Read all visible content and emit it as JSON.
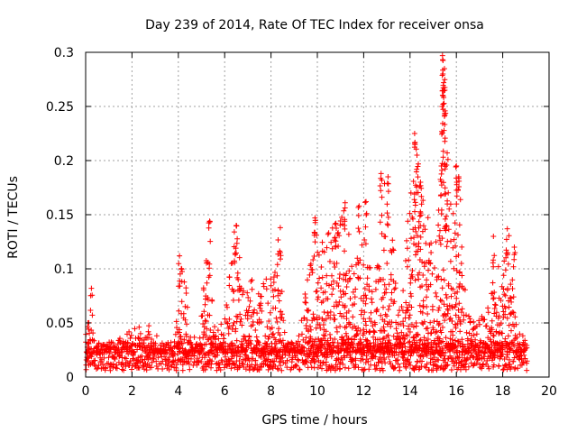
{
  "chart_data": {
    "type": "scatter",
    "title": "Day 239 of 2014, Rate Of TEC Index for receiver onsa",
    "xlabel": "GPS time / hours",
    "ylabel": "ROTI / TECUs",
    "xlim": [
      0,
      20
    ],
    "ylim": [
      0,
      0.3
    ],
    "xticks": [
      0,
      2,
      4,
      6,
      8,
      10,
      12,
      14,
      16,
      18,
      20
    ],
    "yticks": [
      0,
      0.05,
      0.1,
      0.15,
      0.2,
      0.25,
      0.3
    ],
    "ytick_labels": [
      "0",
      "0.05",
      "0.1",
      "0.15",
      "0.2",
      "0.25",
      "0.3"
    ],
    "grid": true,
    "marker": "+",
    "color": "#ff0000",
    "series": [
      {
        "name": "ROTI",
        "baseline": {
          "x_start": 0.0,
          "x_end": 19.0,
          "step": 0.05,
          "y_min": 0.006,
          "y_max": 0.032
        },
        "envelope": [
          [
            0.0,
            0.05
          ],
          [
            0.2,
            0.052
          ],
          [
            0.5,
            0.03
          ],
          [
            1.0,
            0.035
          ],
          [
            1.5,
            0.04
          ],
          [
            2.0,
            0.045
          ],
          [
            2.5,
            0.048
          ],
          [
            2.8,
            0.055
          ],
          [
            3.2,
            0.03
          ],
          [
            3.8,
            0.035
          ],
          [
            4.1,
            0.11
          ],
          [
            4.4,
            0.07
          ],
          [
            4.8,
            0.04
          ],
          [
            5.3,
            0.14
          ],
          [
            5.6,
            0.04
          ],
          [
            6.0,
            0.06
          ],
          [
            6.4,
            0.14
          ],
          [
            6.8,
            0.09
          ],
          [
            7.2,
            0.1
          ],
          [
            7.6,
            0.09
          ],
          [
            8.0,
            0.1
          ],
          [
            8.3,
            0.135
          ],
          [
            8.6,
            0.03
          ],
          [
            9.2,
            0.04
          ],
          [
            9.6,
            0.1
          ],
          [
            9.9,
            0.145
          ],
          [
            10.3,
            0.13
          ],
          [
            10.6,
            0.14
          ],
          [
            11.0,
            0.15
          ],
          [
            11.2,
            0.16
          ],
          [
            11.6,
            0.1
          ],
          [
            12.0,
            0.15
          ],
          [
            12.4,
            0.08
          ],
          [
            12.8,
            0.185
          ],
          [
            13.1,
            0.16
          ],
          [
            13.4,
            0.08
          ],
          [
            13.8,
            0.12
          ],
          [
            14.2,
            0.225
          ],
          [
            14.5,
            0.17
          ],
          [
            14.8,
            0.15
          ],
          [
            15.0,
            0.1
          ],
          [
            15.3,
            0.2
          ],
          [
            15.45,
            0.295
          ],
          [
            15.7,
            0.16
          ],
          [
            16.1,
            0.19
          ],
          [
            16.4,
            0.06
          ],
          [
            16.8,
            0.05
          ],
          [
            17.3,
            0.07
          ],
          [
            17.6,
            0.13
          ],
          [
            17.9,
            0.1
          ],
          [
            18.3,
            0.135
          ],
          [
            18.6,
            0.04
          ],
          [
            19.0,
            0.04
          ]
        ],
        "spikes": [
          [
            0.1,
            0.05
          ],
          [
            0.25,
            0.082
          ],
          [
            4.05,
            0.112
          ],
          [
            5.35,
            0.144
          ],
          [
            6.5,
            0.14
          ],
          [
            8.4,
            0.138
          ],
          [
            9.9,
            0.147
          ],
          [
            10.8,
            0.142
          ],
          [
            11.2,
            0.161
          ],
          [
            11.8,
            0.158
          ],
          [
            12.1,
            0.162
          ],
          [
            12.75,
            0.188
          ],
          [
            13.05,
            0.185
          ],
          [
            14.2,
            0.225
          ],
          [
            14.3,
            0.205
          ],
          [
            14.45,
            0.18
          ],
          [
            15.4,
            0.297
          ],
          [
            15.42,
            0.28
          ],
          [
            15.45,
            0.272
          ],
          [
            15.5,
            0.265
          ],
          [
            15.38,
            0.25
          ],
          [
            15.35,
            0.195
          ],
          [
            15.5,
            0.197
          ],
          [
            16.0,
            0.195
          ],
          [
            16.1,
            0.185
          ],
          [
            17.6,
            0.13
          ],
          [
            18.2,
            0.137
          ],
          [
            18.5,
            0.12
          ]
        ]
      }
    ]
  }
}
